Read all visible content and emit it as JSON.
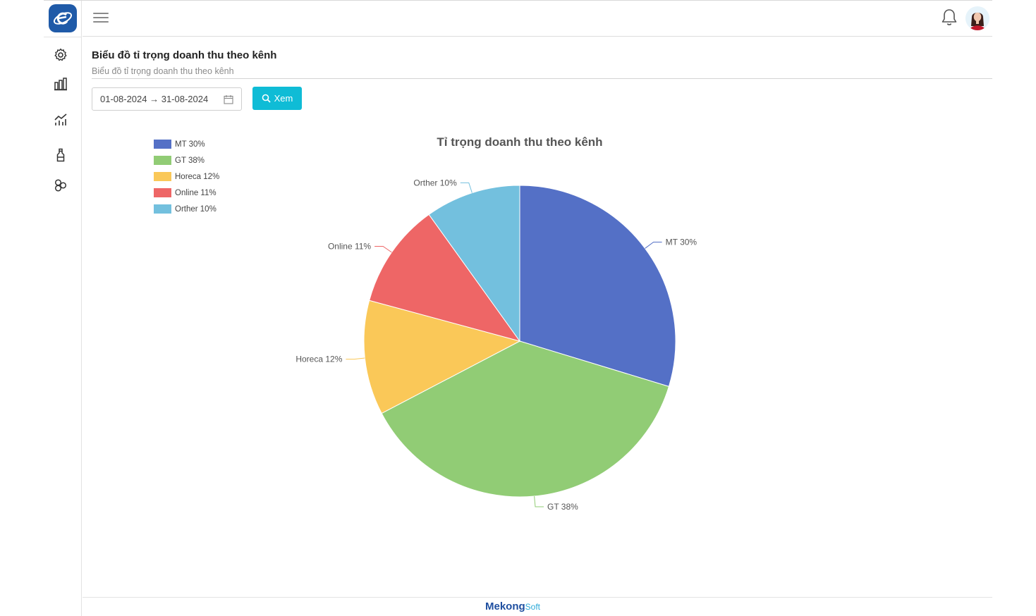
{
  "header": {
    "menu_icon": "hamburger-menu-icon",
    "bell_icon": "bell-icon"
  },
  "sidebar": {
    "items": [
      {
        "icon": "settings-gear-icon"
      },
      {
        "icon": "building-chart-icon"
      },
      {
        "icon": "line-chart-icon"
      },
      {
        "icon": "bottle-icon"
      },
      {
        "icon": "cluster-circles-icon"
      }
    ]
  },
  "page": {
    "title": "Biểu đồ tỉ trọng doanh thu theo kênh",
    "subtitle": "Biểu đồ tỉ trọng doanh thu theo kênh"
  },
  "filter": {
    "date_range": "01-08-2024 → 31-08-2024",
    "view_button": "Xem"
  },
  "chart_data": {
    "type": "pie",
    "title": "Tỉ trọng doanh thu theo kênh",
    "legend_position": "top-left",
    "series": [
      {
        "name": "MT 30%",
        "value": 30,
        "color": "#5470c6"
      },
      {
        "name": "GT 38%",
        "value": 38,
        "color": "#91cc75"
      },
      {
        "name": "Horeca 12%",
        "value": 12,
        "color": "#fac858"
      },
      {
        "name": "Online 11%",
        "value": 11,
        "color": "#ee6666"
      },
      {
        "name": "Orther 10%",
        "value": 10,
        "color": "#73c0de"
      }
    ]
  },
  "footer": {
    "brand_main": "Mekong",
    "brand_suffix": "Soft"
  }
}
